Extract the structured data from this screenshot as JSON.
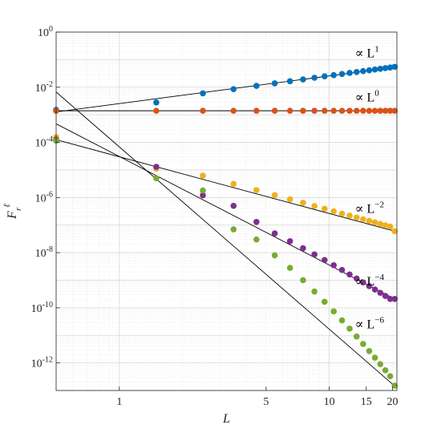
{
  "chart_data": {
    "type": "scatter",
    "xscale": "log",
    "yscale": "log",
    "xlim": [
      0.5,
      21
    ],
    "ylim": [
      1e-13,
      1
    ],
    "grid": true,
    "minor_grid": true,
    "xlabel": "L",
    "ylabel": "F",
    "ylabel_script": "r",
    "ylabel_super": "ℓ",
    "x_ticks": [
      {
        "value": 1,
        "label": "1"
      },
      {
        "value": 5,
        "label": "5"
      },
      {
        "value": 10,
        "label": "10"
      },
      {
        "value": 15,
        "label": "15"
      },
      {
        "value": 20,
        "label": "20"
      }
    ],
    "y_ticks": [
      {
        "value": 1,
        "base": "10",
        "exp": "0"
      },
      {
        "value": 0.01,
        "base": "10",
        "exp": "-2"
      },
      {
        "value": 0.0001,
        "base": "10",
        "exp": "-4"
      },
      {
        "value": 1e-06,
        "base": "10",
        "exp": "-6"
      },
      {
        "value": 1e-08,
        "base": "10",
        "exp": "-8"
      },
      {
        "value": 1e-10,
        "base": "10",
        "exp": "-10"
      },
      {
        "value": 1e-12,
        "base": "10",
        "exp": "-12"
      }
    ],
    "x": [
      0.5,
      1.5,
      2.5,
      3.5,
      4.5,
      5.5,
      6.5,
      7.5,
      8.5,
      9.5,
      10.5,
      11.5,
      12.5,
      13.5,
      14.5,
      15.5,
      16.5,
      17.5,
      18.5,
      19.5,
      20.5
    ],
    "series": [
      {
        "color": "#0072BD",
        "values": [
          0.0015,
          0.0028,
          0.006,
          0.0085,
          0.0112,
          0.0138,
          0.0165,
          0.0192,
          0.022,
          0.0248,
          0.0275,
          0.0302,
          0.0329,
          0.0356,
          0.0384,
          0.0411,
          0.0438,
          0.0466,
          0.0493,
          0.052,
          0.0548
        ]
      },
      {
        "color": "#D95319",
        "values": [
          0.0014,
          0.0014,
          0.0014,
          0.0014,
          0.0014,
          0.0014,
          0.0014,
          0.0014,
          0.0014,
          0.0014,
          0.0014,
          0.0014,
          0.0014,
          0.0014,
          0.0014,
          0.0014,
          0.0014,
          0.0014,
          0.0014,
          0.0014,
          0.0014
        ]
      },
      {
        "color": "#EDB120",
        "values": [
          0.000155,
          1.1e-05,
          6.2e-06,
          3.1e-06,
          1.85e-06,
          1.22e-06,
          8.6e-07,
          6.4e-07,
          4.9e-07,
          3.9e-07,
          3.15e-07,
          2.6e-07,
          2.2e-07,
          1.88e-07,
          1.62e-07,
          1.42e-07,
          1.25e-07,
          1.1e-07,
          9.8e-08,
          8.8e-08,
          6e-08
        ]
      },
      {
        "color": "#7E2F8E",
        "values": [
          0.000125,
          1.3e-05,
          1.2e-06,
          5e-07,
          1.3e-07,
          5e-08,
          2.6e-08,
          1.45e-08,
          8.6e-09,
          5.4e-09,
          3.5e-09,
          2.35e-09,
          1.62e-09,
          1.15e-09,
          8.3e-10,
          6.1e-10,
          4.6e-10,
          3.5e-10,
          2.7e-10,
          2.1e-10,
          2.1e-10
        ]
      },
      {
        "color": "#77AC30",
        "values": [
          0.000115,
          5e-06,
          1.8e-06,
          7e-08,
          3e-08,
          8e-09,
          2.8e-09,
          1e-09,
          3.9e-10,
          1.65e-10,
          7.4e-11,
          3.5e-11,
          1.75e-11,
          9.1e-12,
          4.9e-12,
          2.7e-12,
          1.55e-12,
          9e-13,
          5.4e-13,
          3.3e-13,
          1.5e-13
        ]
      }
    ],
    "fit_lines": [
      {
        "color": "#000000",
        "from": [
          0.5,
          0.00127
        ],
        "to": [
          20.5,
          0.0527
        ]
      },
      {
        "color": "#000000",
        "from": [
          0.5,
          0.0014
        ],
        "to": [
          20.5,
          0.0014
        ]
      },
      {
        "color": "#000000",
        "from": [
          0.5,
          0.000125
        ],
        "to": [
          20.5,
          6e-08
        ]
      },
      {
        "color": "#000000",
        "from": [
          0.5,
          0.00047
        ],
        "to": [
          20.5,
          2.1e-10
        ]
      },
      {
        "color": "#000000",
        "from": [
          0.5,
          0.0067
        ],
        "to": [
          20.5,
          1.45e-13
        ]
      }
    ],
    "annotations": [
      {
        "prefix": "∝ L",
        "exp": "1",
        "at": [
          14.6,
          0.12
        ]
      },
      {
        "prefix": "∝ L",
        "exp": "0",
        "at": [
          14.6,
          0.0031
        ]
      },
      {
        "prefix": "∝ L",
        "exp": "−2",
        "at": [
          14.6,
          2.8e-07
        ]
      },
      {
        "prefix": "∝ L",
        "exp": "−4",
        "at": [
          14.6,
          6.5e-10
        ]
      },
      {
        "prefix": "∝ L",
        "exp": "−6",
        "at": [
          14.6,
          1.8e-11
        ]
      }
    ]
  }
}
